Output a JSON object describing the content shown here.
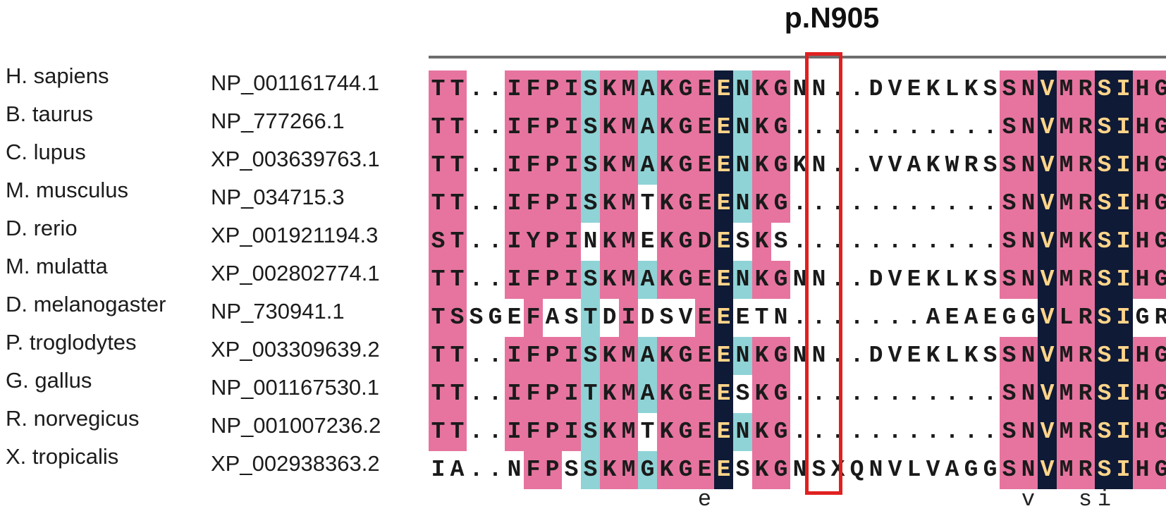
{
  "variant_label": "p.N905",
  "colors": {
    "identical_bg": "#0f1a36",
    "similar_bg": "#e6749f",
    "weak_bg": "#8fd3d6",
    "highlight_border": "#e02020",
    "rule": "#6e6e6e"
  },
  "alignment": {
    "rows": [
      {
        "species": "H. sapiens",
        "accession": "NP_001161744.1",
        "sequence": "TT..IFPISKMAKGEENKGNN..DVEKLKSSNVMRSIHG"
      },
      {
        "species": "B. taurus",
        "accession": "NP_777266.1",
        "sequence": "TT..IFPISKMAKGEENKG...........SNVMRSIHG"
      },
      {
        "species": "C. lupus",
        "accession": "XP_003639763.1",
        "sequence": "TT..IFPISKMAKGEENKGKN..VVAKWRSSNVMRSIHG"
      },
      {
        "species": "M. musculus",
        "accession": "NP_034715.3",
        "sequence": "TT..IFPISKMTKGEENKG...........SNVMRSIHG"
      },
      {
        "species": "D. rerio",
        "accession": "XP_001921194.3",
        "sequence": "ST..IYPINKMEKGDESKS...........SNVMKSIHG"
      },
      {
        "species": "M. mulatta",
        "accession": "XP_002802774.1",
        "sequence": "TT..IFPISKMAKGEENKGNN..DVEKLKSSNVMRSIHG"
      },
      {
        "species": "D. melanogaster",
        "accession": "NP_730941.1",
        "sequence": "TSSGEFASTDIDSVEEETN.......AEAEGGVLRSIGR"
      },
      {
        "species": "P. troglodytes",
        "accession": "XP_003309639.2",
        "sequence": "TT..IFPISKMAKGEENKGNN..DVEKLKSSNVMRSIHG"
      },
      {
        "species": "G. gallus",
        "accession": "NP_001167530.1",
        "sequence": "TT..IFPITKMAKGEESKG...........SNVMRSIHG"
      },
      {
        "species": "R. norvegicus",
        "accession": "NP_001007236.2",
        "sequence": "TT..IFPISKMTKGEENKG...........SNVMRSIHG"
      },
      {
        "species": "X. tropicalis",
        "accession": "XP_002938363.2",
        "sequence": "IA..NFPSSKMGKGEESKGNSXQNVLVAGGSNVMRSIHG"
      }
    ],
    "consensus": [
      {
        "pos": 14,
        "char": "e"
      },
      {
        "pos": 31,
        "char": "v"
      },
      {
        "pos": 34,
        "char": "s"
      },
      {
        "pos": 35,
        "char": "i"
      }
    ]
  }
}
